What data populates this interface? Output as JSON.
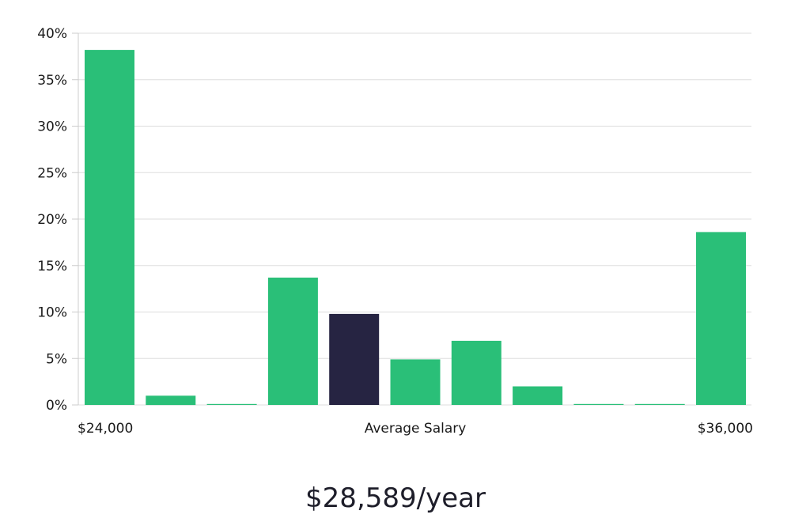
{
  "chart_data": {
    "type": "bar",
    "values": [
      38.2,
      1.0,
      0.1,
      13.7,
      9.8,
      4.9,
      6.9,
      2.0,
      0.1,
      0.1,
      18.6
    ],
    "highlight_index": 4,
    "ylim": [
      0,
      40
    ],
    "yticks": [
      "0%",
      "5%",
      "10%",
      "15%",
      "20%",
      "25%",
      "30%",
      "35%",
      "40%"
    ],
    "ytick_values": [
      0,
      5,
      10,
      15,
      20,
      25,
      30,
      35,
      40
    ],
    "x_min_label": "$24,000",
    "x_center_label": "Average Salary",
    "x_max_label": "$36,000",
    "grid": true,
    "colors": {
      "bar": "#2abf78",
      "highlight": "#262442",
      "grid": "#dddddd"
    }
  },
  "average": {
    "value_label": "$28,589/year"
  }
}
